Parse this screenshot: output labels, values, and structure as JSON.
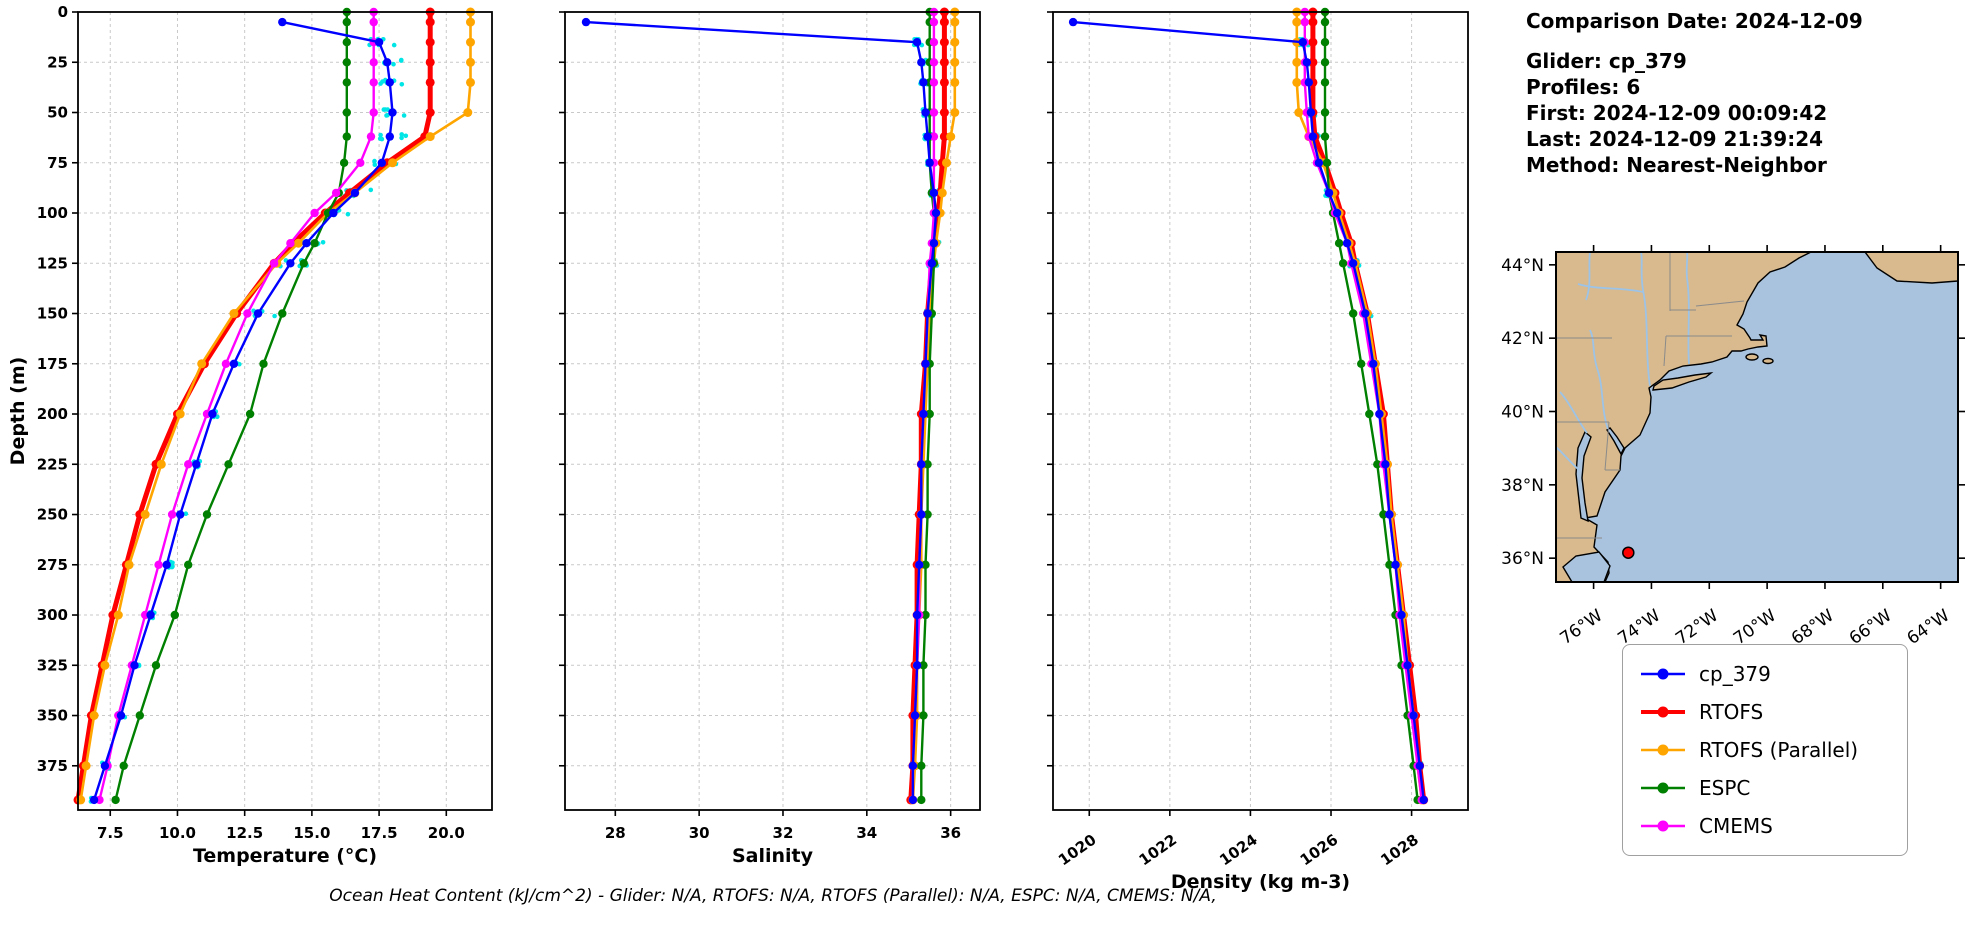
{
  "info": {
    "comparison_date": "Comparison Date: 2024-12-09",
    "glider": "Glider: cp_379",
    "profiles": "Profiles: 6",
    "first": "First: 2024-12-09 00:09:42",
    "last": "Last: 2024-12-09 21:39:24",
    "method": "Method: Nearest-Neighbor"
  },
  "caption": {
    "text": "Ocean Heat Content (kJ/cm^2) - Glider: N/A,  RTOFS: N/A,  RTOFS (Parallel): N/A,  ESPC: N/A,  CMEMS: N/A,"
  },
  "legend": {
    "entries": [
      {
        "label": "cp_379",
        "color": "#0000ff"
      },
      {
        "label": "RTOFS",
        "color": "#ff0000"
      },
      {
        "label": "RTOFS (Parallel)",
        "color": "#ffa500"
      },
      {
        "label": "ESPC",
        "color": "#008000"
      },
      {
        "label": "CMEMS",
        "color": "#ff00ff"
      }
    ]
  },
  "map": {
    "lat_ticks": [
      "44°N",
      "42°N",
      "40°N",
      "38°N",
      "36°N"
    ],
    "lat_values": [
      44,
      42,
      40,
      38,
      36
    ],
    "lon_ticks": [
      "76°W",
      "74°W",
      "72°W",
      "70°W",
      "68°W",
      "66°W",
      "64°W"
    ],
    "lon_values": [
      -76,
      -74,
      -72,
      -70,
      -68,
      -66,
      -64
    ],
    "extent": {
      "lon_min": -77.3,
      "lon_max": -63.4,
      "lat_min": 35.35,
      "lat_max": 44.35
    },
    "land_color": "#d8ba8e",
    "ocean_color": "#a9c3de",
    "river_color": "#9dc3e6",
    "marker": {
      "lon": -74.8,
      "lat": 36.15,
      "color": "#ff0000"
    }
  },
  "chart_data": [
    {
      "id": "temperature",
      "type": "line",
      "xlabel": "Temperature (°C)",
      "ylabel": "Depth (m)",
      "xlim": [
        6.3,
        21.7
      ],
      "ylim": [
        0,
        397
      ],
      "xticks": [
        7.5,
        10.0,
        12.5,
        15.0,
        17.5,
        20.0
      ],
      "xtick_labels": [
        "7.5",
        "10.0",
        "12.5",
        "15.0",
        "17.5",
        "20.0"
      ],
      "yticks": [
        0,
        25,
        50,
        75,
        100,
        125,
        150,
        175,
        200,
        225,
        250,
        275,
        300,
        325,
        350,
        375
      ],
      "ytick_labels": [
        "0",
        "25",
        "50",
        "75",
        "100",
        "125",
        "150",
        "175",
        "200",
        "225",
        "250",
        "275",
        "300",
        "325",
        "350",
        "375"
      ],
      "grid": true,
      "depths": [
        0,
        5,
        15,
        25,
        35,
        50,
        62,
        75,
        90,
        100,
        115,
        125,
        150,
        175,
        200,
        225,
        250,
        275,
        300,
        325,
        350,
        375,
        392
      ],
      "raw_scatter": {
        "color": "#00e5e5",
        "profiles": 6,
        "jitter": 0.5
      },
      "series": [
        {
          "name": "cp_379",
          "color": "#0000ff",
          "values": [
            null,
            13.9,
            17.5,
            17.8,
            17.9,
            18.0,
            17.9,
            17.6,
            16.6,
            15.8,
            14.8,
            14.2,
            13.0,
            12.1,
            11.3,
            10.7,
            10.1,
            9.6,
            9.0,
            8.4,
            7.9,
            7.3,
            6.9
          ]
        },
        {
          "name": "RTOFS",
          "color": "#ff0000",
          "values": [
            19.4,
            19.4,
            19.4,
            19.4,
            19.4,
            19.4,
            19.2,
            17.8,
            16.4,
            15.5,
            14.3,
            13.6,
            12.2,
            11.0,
            10.0,
            9.2,
            8.6,
            8.1,
            7.6,
            7.2,
            6.8,
            6.5,
            6.3
          ]
        },
        {
          "name": "RTOFS (Parallel)",
          "color": "#ffa500",
          "values": [
            20.9,
            20.9,
            20.9,
            20.9,
            20.9,
            20.8,
            19.4,
            18.0,
            16.6,
            15.6,
            14.5,
            13.7,
            12.1,
            10.9,
            10.1,
            9.4,
            8.8,
            8.2,
            7.8,
            7.3,
            6.9,
            6.6,
            6.4
          ]
        },
        {
          "name": "ESPC",
          "color": "#008000",
          "values": [
            16.3,
            16.3,
            16.3,
            16.3,
            16.3,
            16.3,
            16.3,
            16.2,
            16.0,
            15.6,
            15.1,
            14.7,
            13.9,
            13.2,
            12.7,
            11.9,
            11.1,
            10.4,
            9.9,
            9.2,
            8.6,
            8.0,
            7.7
          ]
        },
        {
          "name": "CMEMS",
          "color": "#ff00ff",
          "values": [
            17.3,
            17.3,
            17.3,
            17.3,
            17.3,
            17.3,
            17.2,
            16.8,
            15.9,
            15.1,
            14.2,
            13.6,
            12.6,
            11.8,
            11.1,
            10.4,
            9.8,
            9.3,
            8.8,
            8.3,
            7.8,
            7.4,
            7.1
          ]
        }
      ]
    },
    {
      "id": "salinity",
      "type": "line",
      "xlabel": "Salinity",
      "ylabel": "",
      "xlim": [
        26.8,
        36.7
      ],
      "ylim": [
        0,
        397
      ],
      "xticks": [
        28,
        30,
        32,
        34,
        36
      ],
      "xtick_labels": [
        "28",
        "30",
        "32",
        "34",
        "36"
      ],
      "yticks": [
        0,
        25,
        50,
        75,
        100,
        125,
        150,
        175,
        200,
        225,
        250,
        275,
        300,
        325,
        350,
        375
      ],
      "ytick_labels": [
        "0",
        "25",
        "50",
        "75",
        "100",
        "125",
        "150",
        "175",
        "200",
        "225",
        "250",
        "275",
        "300",
        "325",
        "350",
        "375"
      ],
      "grid": true,
      "depths": [
        0,
        5,
        15,
        25,
        35,
        50,
        62,
        75,
        90,
        100,
        115,
        125,
        150,
        175,
        200,
        225,
        250,
        275,
        300,
        325,
        350,
        375,
        392
      ],
      "raw_scatter": {
        "color": "#00e5e5",
        "profiles": 6,
        "jitter": 0.1
      },
      "series": [
        {
          "name": "cp_379",
          "color": "#0000ff",
          "values": [
            null,
            27.3,
            35.2,
            35.3,
            35.35,
            35.4,
            35.45,
            35.5,
            35.6,
            35.65,
            35.6,
            35.55,
            35.45,
            35.4,
            35.35,
            35.3,
            35.3,
            35.25,
            35.2,
            35.2,
            35.15,
            35.1,
            35.1
          ]
        },
        {
          "name": "RTOFS",
          "color": "#ff0000",
          "values": [
            35.85,
            35.85,
            35.85,
            35.85,
            35.85,
            35.85,
            35.85,
            35.8,
            35.75,
            35.7,
            35.6,
            35.55,
            35.45,
            35.4,
            35.3,
            35.3,
            35.25,
            35.2,
            35.2,
            35.15,
            35.1,
            35.1,
            35.05
          ]
        },
        {
          "name": "RTOFS (Parallel)",
          "color": "#ffa500",
          "values": [
            36.1,
            36.1,
            36.1,
            36.1,
            36.1,
            36.1,
            36.0,
            35.9,
            35.8,
            35.75,
            35.65,
            35.6,
            35.5,
            35.45,
            35.4,
            35.35,
            35.3,
            35.3,
            35.25,
            35.2,
            35.2,
            35.15,
            35.1
          ]
        },
        {
          "name": "ESPC",
          "color": "#008000",
          "values": [
            35.5,
            35.5,
            35.5,
            35.5,
            35.5,
            35.5,
            35.5,
            35.5,
            35.55,
            35.6,
            35.6,
            35.6,
            35.55,
            35.5,
            35.5,
            35.45,
            35.45,
            35.4,
            35.4,
            35.35,
            35.35,
            35.3,
            35.3
          ]
        },
        {
          "name": "CMEMS",
          "color": "#ff00ff",
          "values": [
            35.6,
            35.6,
            35.6,
            35.6,
            35.6,
            35.6,
            35.6,
            35.6,
            35.6,
            35.6,
            35.55,
            35.5,
            35.45,
            35.4,
            35.35,
            35.3,
            35.3,
            35.25,
            35.25,
            35.2,
            35.15,
            35.1,
            35.1
          ]
        }
      ]
    },
    {
      "id": "density",
      "type": "line",
      "xlabel": "Density (kg m-3)",
      "ylabel": "",
      "xlim": [
        1019.1,
        1029.4
      ],
      "ylim": [
        0,
        397
      ],
      "xticks": [
        1020,
        1022,
        1024,
        1026,
        1028
      ],
      "xtick_labels": [
        "1020",
        "1022",
        "1024",
        "1026",
        "1028"
      ],
      "yticks": [
        0,
        25,
        50,
        75,
        100,
        125,
        150,
        175,
        200,
        225,
        250,
        275,
        300,
        325,
        350,
        375
      ],
      "ytick_labels": [
        "0",
        "25",
        "50",
        "75",
        "100",
        "125",
        "150",
        "175",
        "200",
        "225",
        "250",
        "275",
        "300",
        "325",
        "350",
        "375"
      ],
      "grid": true,
      "depths": [
        0,
        5,
        15,
        25,
        35,
        50,
        62,
        75,
        90,
        100,
        115,
        125,
        150,
        175,
        200,
        225,
        250,
        275,
        300,
        325,
        350,
        375,
        392
      ],
      "raw_scatter": {
        "color": "#00e5e5",
        "profiles": 6,
        "jitter": 0.12
      },
      "series": [
        {
          "name": "cp_379",
          "color": "#0000ff",
          "values": [
            null,
            1019.6,
            1025.3,
            1025.4,
            1025.45,
            1025.5,
            1025.55,
            1025.7,
            1025.95,
            1026.15,
            1026.4,
            1026.55,
            1026.85,
            1027.05,
            1027.2,
            1027.35,
            1027.45,
            1027.6,
            1027.75,
            1027.9,
            1028.05,
            1028.2,
            1028.3
          ]
        },
        {
          "name": "RTOFS",
          "color": "#ff0000",
          "values": [
            1025.55,
            1025.55,
            1025.55,
            1025.55,
            1025.55,
            1025.55,
            1025.6,
            1025.85,
            1026.1,
            1026.25,
            1026.5,
            1026.6,
            1026.9,
            1027.1,
            1027.3,
            1027.4,
            1027.5,
            1027.65,
            1027.8,
            1027.95,
            1028.1,
            1028.2,
            1028.3
          ]
        },
        {
          "name": "RTOFS (Parallel)",
          "color": "#ffa500",
          "values": [
            1025.15,
            1025.15,
            1025.15,
            1025.15,
            1025.15,
            1025.2,
            1025.45,
            1025.8,
            1026.05,
            1026.2,
            1026.45,
            1026.6,
            1026.9,
            1027.1,
            1027.25,
            1027.4,
            1027.5,
            1027.65,
            1027.8,
            1027.9,
            1028.05,
            1028.15,
            1028.25
          ]
        },
        {
          "name": "ESPC",
          "color": "#008000",
          "values": [
            1025.85,
            1025.85,
            1025.85,
            1025.85,
            1025.85,
            1025.85,
            1025.85,
            1025.9,
            1025.95,
            1026.05,
            1026.2,
            1026.3,
            1026.55,
            1026.75,
            1026.95,
            1027.15,
            1027.3,
            1027.45,
            1027.6,
            1027.75,
            1027.9,
            1028.05,
            1028.15
          ]
        },
        {
          "name": "CMEMS",
          "color": "#ff00ff",
          "values": [
            1025.35,
            1025.35,
            1025.35,
            1025.35,
            1025.35,
            1025.4,
            1025.45,
            1025.65,
            1025.95,
            1026.1,
            1026.4,
            1026.5,
            1026.8,
            1027.0,
            1027.2,
            1027.3,
            1027.45,
            1027.6,
            1027.7,
            1027.85,
            1028.0,
            1028.15,
            1028.25
          ]
        }
      ]
    }
  ]
}
